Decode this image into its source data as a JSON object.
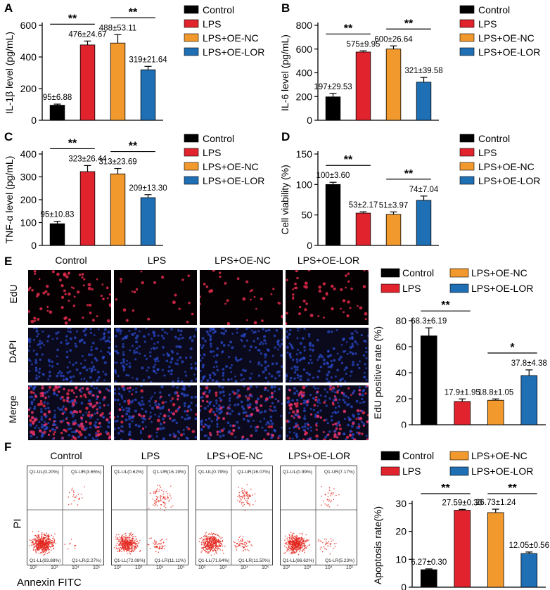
{
  "colors": {
    "Control": "#000000",
    "LPS": "#e0232c",
    "LPS+OE-NC": "#f2992e",
    "LPS+OE-LOR": "#1f6fb4"
  },
  "series": [
    "Control",
    "LPS",
    "LPS+OE-NC",
    "LPS+OE-LOR"
  ],
  "legend_E": [
    "Control",
    "LPS+OE-NC",
    "LPS",
    "LPS+OE-LOR"
  ],
  "chart_data": [
    {
      "panel": "A",
      "type": "bar",
      "ylabel": "IL-1β level (pg/mL)",
      "ylim": [
        0,
        600
      ],
      "yticks": [
        "0",
        "200",
        "400",
        "600"
      ],
      "categories": [
        "Control",
        "LPS",
        "LPS+OE-NC",
        "LPS+OE-LOR"
      ],
      "values": [
        95,
        476,
        488,
        319
      ],
      "errors": [
        6.88,
        24.67,
        53.11,
        21.64
      ],
      "labels": [
        "95±6.88",
        "476±24.67",
        "488±53.11",
        "319±21.64"
      ],
      "sig": [
        {
          "from": 0,
          "to": 1,
          "label": "**"
        },
        {
          "from": 2,
          "to": 3,
          "label": "**"
        }
      ]
    },
    {
      "panel": "B",
      "type": "bar",
      "ylabel": "IL-6 level (pg/mL)",
      "ylim": [
        0,
        800
      ],
      "yticks": [
        "0",
        "200",
        "400",
        "600",
        "800"
      ],
      "categories": [
        "Control",
        "LPS",
        "LPS+OE-NC",
        "LPS+OE-LOR"
      ],
      "values": [
        197,
        575,
        600,
        321
      ],
      "errors": [
        29.53,
        9.95,
        26.64,
        39.58
      ],
      "labels": [
        "197±29.53",
        "575±9.95",
        "600±26.64",
        "321±39.58"
      ],
      "sig": [
        {
          "from": 0,
          "to": 1,
          "label": "**"
        },
        {
          "from": 2,
          "to": 3,
          "label": "**"
        }
      ]
    },
    {
      "panel": "C",
      "type": "bar",
      "ylabel": "TNF-α level (pg/mL)",
      "ylim": [
        0,
        400
      ],
      "yticks": [
        "0",
        "100",
        "200",
        "300",
        "400"
      ],
      "categories": [
        "Control",
        "LPS",
        "LPS+OE-NC",
        "LPS+OE-LOR"
      ],
      "values": [
        95,
        323,
        313,
        209
      ],
      "errors": [
        10.83,
        26.44,
        23.69,
        13.3
      ],
      "labels": [
        "95±10.83",
        "323±26.44",
        "313±23.69",
        "209±13.30"
      ],
      "sig": [
        {
          "from": 0,
          "to": 1,
          "label": "**"
        },
        {
          "from": 2,
          "to": 3,
          "label": "**"
        }
      ]
    },
    {
      "panel": "D",
      "type": "bar",
      "ylabel": "Cell viability (%)",
      "ylim": [
        0,
        150
      ],
      "yticks": [
        "0",
        "50",
        "100",
        "150"
      ],
      "categories": [
        "Control",
        "LPS",
        "LPS+OE-NC",
        "LPS+OE-LOR"
      ],
      "values": [
        100,
        53,
        51,
        74
      ],
      "errors": [
        3.6,
        2.17,
        3.97,
        7.04
      ],
      "labels": [
        "100±3.60",
        "53±2.17",
        "51±3.97",
        "74±7.04"
      ],
      "sig": [
        {
          "from": 0,
          "to": 1,
          "label": "**"
        },
        {
          "from": 2,
          "to": 3,
          "label": "**"
        }
      ]
    },
    {
      "panel": "E",
      "type": "bar",
      "ylabel": "EdU positive rate (%)",
      "ylim": [
        0,
        80
      ],
      "yticks": [
        "0",
        "20",
        "40",
        "60",
        "80"
      ],
      "categories": [
        "Control",
        "LPS",
        "LPS+OE-NC",
        "LPS+OE-LOR"
      ],
      "values": [
        68.3,
        17.9,
        18.8,
        37.8
      ],
      "errors": [
        6.19,
        1.95,
        1.05,
        4.38
      ],
      "labels": [
        "68.3±6.19",
        "17.9±1.95",
        "18.8±1.05",
        "37.8±4.38"
      ],
      "sig": [
        {
          "from": 0,
          "to": 1,
          "label": "**"
        },
        {
          "from": 2,
          "to": 3,
          "label": "*"
        }
      ]
    },
    {
      "panel": "F",
      "type": "bar",
      "ylabel": "Apoptosis rate(%)",
      "ylim": [
        0,
        30
      ],
      "yticks": [
        "0",
        "10",
        "20",
        "30"
      ],
      "categories": [
        "Control",
        "LPS",
        "LPS+OE-NC",
        "LPS+OE-LOR"
      ],
      "values": [
        6.27,
        27.59,
        26.73,
        12.05
      ],
      "errors": [
        0.3,
        0.3,
        1.24,
        0.56
      ],
      "labels": [
        "6.27±0.30",
        "27.59±0.30",
        "26.73±1.24",
        "12.05±0.56"
      ],
      "sig": [
        {
          "from": 0,
          "to": 1,
          "label": "**"
        },
        {
          "from": 2,
          "to": 3,
          "label": "**"
        }
      ]
    }
  ],
  "panel_letters": {
    "A": "A",
    "B": "B",
    "C": "C",
    "D": "D",
    "E": "E",
    "F": "F"
  },
  "micro": {
    "columns": [
      "Control",
      "LPS",
      "LPS+OE-NC",
      "LPS+OE-LOR"
    ],
    "rows": [
      "EdU",
      "DAPI",
      "Merge"
    ]
  },
  "flow": {
    "columns": [
      "Control",
      "LPS",
      "LPS+OE-NC",
      "LPS+OE-LOR"
    ],
    "y_axis_label": "PI",
    "x_axis_label": "Annexin FITC",
    "quadrants": [
      {
        "ul": "Q1-UL(0.20%)",
        "ur": "Q1-UR(3.65%)",
        "ll": "Q1-LL(93.88%)",
        "lr": "Q1-LR(2.27%)"
      },
      {
        "ul": "Q1-UL(0.62%)",
        "ur": "Q1-UR(16.19%)",
        "ll": "Q1-LL(72.08%)",
        "lr": "Q1-LR(11.11%)"
      },
      {
        "ul": "Q1-UL(0.79%)",
        "ur": "Q1-UR(16.07%)",
        "ll": "Q1-LL(71.64%)",
        "lr": "Q1-LR(11.50%)"
      },
      {
        "ul": "Q1-UL(0.99%)",
        "ur": "Q1-UR(7.17%)",
        "ll": "Q1-LL(86.62%)",
        "lr": "Q1-LR(5.23%)"
      }
    ],
    "ticks": [
      "10²",
      "10³",
      "10⁴",
      "10⁵"
    ]
  }
}
